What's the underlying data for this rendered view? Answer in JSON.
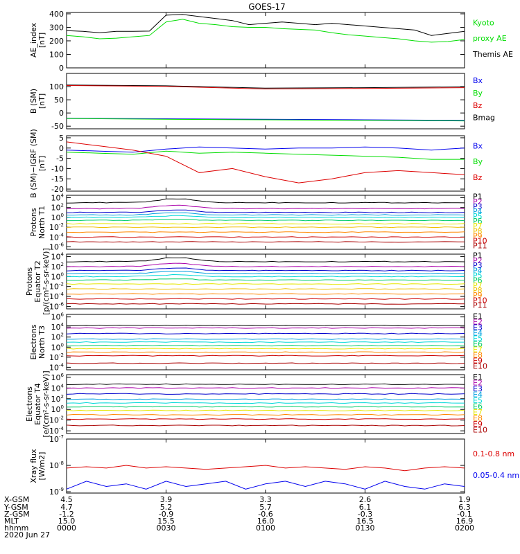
{
  "title": "GOES-17",
  "date_label": "2020 Jun 27",
  "x_axis": {
    "ticks": [
      {
        "label_rows": [
          "4.5",
          "4.7",
          "-1.2",
          "15.0",
          "0000"
        ]
      },
      {
        "label_rows": [
          "3.9",
          "5.2",
          "-0.9",
          "15.5",
          "0030"
        ]
      },
      {
        "label_rows": [
          "3.3",
          "5.7",
          "-0.6",
          "16.0",
          "0100"
        ]
      },
      {
        "label_rows": [
          "2.6",
          "6.1",
          "-0.3",
          "16.5",
          "0130"
        ]
      },
      {
        "label_rows": [
          "1.9",
          "6.3",
          "-0.1",
          "16.9",
          "0200"
        ]
      }
    ],
    "row_labels": [
      "X-GSM",
      "Y-GSM",
      "Z-GSM",
      "MLT",
      "hhmm"
    ]
  },
  "colors": {
    "black": "#000000",
    "green": "#00dd00",
    "red": "#dd0000",
    "blue": "#0000ee",
    "P": [
      "#000000",
      "#aa00aa",
      "#0000cc",
      "#00a0e0",
      "#00d8d8",
      "#00cc66",
      "#e6e600",
      "#f0c000",
      "#ff8800",
      "#cc0000",
      "#aa0000"
    ],
    "E": [
      "#000000",
      "#aa00aa",
      "#0000cc",
      "#00a0e0",
      "#00d8d8",
      "#00cc66",
      "#e6e600",
      "#ff8800",
      "#cc0000",
      "#aa0000"
    ]
  },
  "chart_data": [
    {
      "type": "line",
      "ylabel": [
        "AE_index",
        "[nT]"
      ],
      "yticks": [
        "0",
        "100",
        "200",
        "300",
        "400"
      ],
      "ylim": [
        0,
        410
      ],
      "legend": [
        {
          "label": "Kyoto",
          "color_key": "green"
        },
        {
          "label": "proxy AE",
          "color_key": "green"
        },
        {
          "label": "Themis AE",
          "color_key": "black"
        }
      ],
      "series": [
        {
          "name": "Themis AE",
          "color_key": "black",
          "x": [
            0,
            5,
            10,
            15,
            20,
            25,
            30,
            35,
            40,
            45,
            50,
            55,
            60,
            65,
            70,
            75,
            80,
            85,
            90,
            95,
            100,
            105,
            110,
            115,
            120
          ],
          "y": [
            275,
            270,
            260,
            270,
            270,
            272,
            390,
            395,
            380,
            365,
            350,
            320,
            330,
            340,
            330,
            320,
            330,
            320,
            310,
            300,
            290,
            280,
            240,
            255,
            270
          ]
        },
        {
          "name": "Kyoto proxy AE",
          "color_key": "green",
          "x": [
            0,
            5,
            10,
            15,
            20,
            25,
            30,
            35,
            40,
            45,
            50,
            55,
            60,
            65,
            70,
            75,
            80,
            85,
            90,
            95,
            100,
            105,
            110,
            115,
            120
          ],
          "y": [
            240,
            230,
            215,
            220,
            230,
            240,
            340,
            360,
            330,
            320,
            305,
            300,
            300,
            290,
            285,
            280,
            260,
            245,
            235,
            225,
            215,
            200,
            190,
            195,
            210
          ]
        }
      ]
    },
    {
      "type": "line",
      "ylabel": [
        "B (SM)",
        "[nT]"
      ],
      "yticks": [
        "-50",
        "0",
        "50",
        "100"
      ],
      "ylim": [
        -60,
        150
      ],
      "legend": [
        {
          "label": "Bx",
          "color_key": "blue"
        },
        {
          "label": "By",
          "color_key": "green"
        },
        {
          "label": "Bz",
          "color_key": "red"
        },
        {
          "label": "Bmag",
          "color_key": "black"
        }
      ],
      "series": [
        {
          "name": "Bx",
          "color_key": "blue",
          "x": [
            0,
            30,
            60,
            90,
            120
          ],
          "y": [
            -20,
            -22,
            -24,
            -26,
            -28
          ]
        },
        {
          "name": "By",
          "color_key": "green",
          "x": [
            0,
            30,
            60,
            90,
            120
          ],
          "y": [
            -21,
            -24,
            -26,
            -28,
            -30
          ]
        },
        {
          "name": "Bmag",
          "color_key": "black",
          "x": [
            0,
            30,
            60,
            90,
            120
          ],
          "y": [
            106,
            103,
            94,
            96,
            99
          ]
        },
        {
          "name": "Bz",
          "color_key": "red",
          "x": [
            0,
            30,
            60,
            90,
            120
          ],
          "y": [
            104,
            101,
            91,
            93,
            96
          ]
        }
      ]
    },
    {
      "type": "line",
      "ylabel": [
        "B (SM)−IGRF (SM)",
        "[nT]"
      ],
      "yticks": [
        "-20",
        "-15",
        "-10",
        "-5",
        "0",
        "5"
      ],
      "ylim": [
        -21,
        6
      ],
      "legend": [
        {
          "label": "Bx",
          "color_key": "blue"
        },
        {
          "label": "By",
          "color_key": "green"
        },
        {
          "label": "Bz",
          "color_key": "red"
        }
      ],
      "series": [
        {
          "name": "Bx",
          "color_key": "blue",
          "x": [
            0,
            10,
            20,
            30,
            40,
            50,
            60,
            70,
            80,
            90,
            100,
            110,
            120
          ],
          "y": [
            -1,
            -1.5,
            -2,
            -0.5,
            0.5,
            0,
            -0.5,
            0,
            0,
            0.5,
            0,
            -1,
            0
          ]
        },
        {
          "name": "By",
          "color_key": "green",
          "x": [
            0,
            10,
            20,
            30,
            40,
            50,
            60,
            70,
            80,
            90,
            100,
            110,
            120
          ],
          "y": [
            -2,
            -2.5,
            -3,
            -1.5,
            -2.5,
            -2,
            -2.5,
            -3,
            -3.5,
            -4,
            -4.5,
            -5.5,
            -5.5
          ]
        },
        {
          "name": "Bz",
          "color_key": "red",
          "x": [
            0,
            10,
            20,
            30,
            40,
            50,
            60,
            70,
            80,
            90,
            100,
            110,
            120
          ],
          "y": [
            3,
            1,
            -1,
            -4,
            -12,
            -10,
            -14,
            -17,
            -15,
            -12,
            -11,
            -12,
            -13
          ]
        }
      ]
    },
    {
      "type": "line",
      "log": true,
      "ylabel": [
        "Protons",
        "North T1"
      ],
      "ytick_exponents": [
        4,
        2,
        0,
        -2,
        -4,
        -6
      ],
      "ylim_exp": [
        -6.5,
        4.5
      ],
      "legend_prefix": "P",
      "legend_count": 11,
      "palette": "P",
      "series_exp": [
        3.0,
        1.8,
        1.0,
        0.5,
        0.0,
        -0.6,
        -1.3,
        -2.0,
        -3.0,
        -4.0,
        -5.0
      ],
      "bump_at": 33
    },
    {
      "type": "line",
      "log": true,
      "ylabel": [
        "Protons",
        "Equator T2",
        "[p/(cm²-s-sr-keV)]"
      ],
      "ytick_exponents": [
        4,
        2,
        0,
        -2,
        -4,
        -6
      ],
      "ylim_exp": [
        -6.5,
        4.5
      ],
      "legend_prefix": "P",
      "legend_count": 11,
      "palette": "P",
      "series_exp": [
        3.0,
        2.0,
        1.2,
        0.6,
        0.0,
        -0.7,
        -1.5,
        -2.5,
        -3.5,
        -4.5,
        -5.5
      ],
      "bump_at": 33
    },
    {
      "type": "line",
      "log": true,
      "ylabel": [
        "Electrons",
        "North T3"
      ],
      "ytick_exponents": [
        6,
        4,
        2,
        0,
        -2,
        -4
      ],
      "ylim_exp": [
        -4.5,
        6.5
      ],
      "legend_prefix": "E",
      "legend_count": 10,
      "palette": "E",
      "series_exp": [
        4.3,
        3.8,
        2.7,
        1.6,
        1.0,
        0.3,
        -0.3,
        -1.0,
        -1.7,
        -3.2
      ],
      "bump_at": -1
    },
    {
      "type": "line",
      "log": true,
      "ylabel": [
        "Electrons",
        "Equator T4",
        "[e/(cm²-s-sr-keV)]"
      ],
      "ytick_exponents": [
        6,
        4,
        2,
        0,
        -2,
        -4
      ],
      "ylim_exp": [
        -4.5,
        6.5
      ],
      "legend_prefix": "E",
      "legend_count": 10,
      "palette": "E",
      "series_exp": [
        4.7,
        4.0,
        2.9,
        1.9,
        1.2,
        0.5,
        -0.2,
        -1.0,
        -1.8,
        -3.0
      ],
      "bump_at": -1
    },
    {
      "type": "line",
      "log": true,
      "ylabel": [
        "Xray flux",
        "[W/m2]"
      ],
      "ytick_exponents": [
        -7,
        -8,
        -9
      ],
      "ylim_exp": [
        -9.05,
        -7.0
      ],
      "legend": [
        {
          "label": "0.1-0.8 nm",
          "color_key": "red"
        },
        {
          "label": "0.05-0.4 nm",
          "color_key": "blue"
        }
      ],
      "series": [
        {
          "name": "0.1-0.8 nm",
          "color_key": "red",
          "x": [
            0,
            6,
            12,
            18,
            24,
            30,
            36,
            42,
            48,
            54,
            60,
            66,
            72,
            78,
            84,
            90,
            96,
            102,
            108,
            114,
            120
          ],
          "y": [
            -8.1,
            -8.05,
            -8.1,
            -8.0,
            -8.1,
            -8.05,
            -8.1,
            -8.15,
            -8.1,
            -8.05,
            -8.0,
            -8.1,
            -8.05,
            -8.1,
            -8.15,
            -8.05,
            -8.1,
            -8.2,
            -8.1,
            -8.05,
            -8.1
          ]
        },
        {
          "name": "0.05-0.4 nm",
          "color_key": "blue",
          "x": [
            0,
            6,
            12,
            18,
            24,
            30,
            36,
            42,
            48,
            54,
            60,
            66,
            72,
            78,
            84,
            90,
            96,
            102,
            108,
            114,
            120
          ],
          "y": [
            -8.9,
            -8.6,
            -8.8,
            -8.7,
            -8.9,
            -8.6,
            -8.8,
            -8.7,
            -8.6,
            -8.9,
            -8.7,
            -8.6,
            -8.8,
            -8.6,
            -8.7,
            -8.9,
            -8.6,
            -8.8,
            -8.9,
            -8.7,
            -8.8
          ]
        }
      ]
    }
  ]
}
